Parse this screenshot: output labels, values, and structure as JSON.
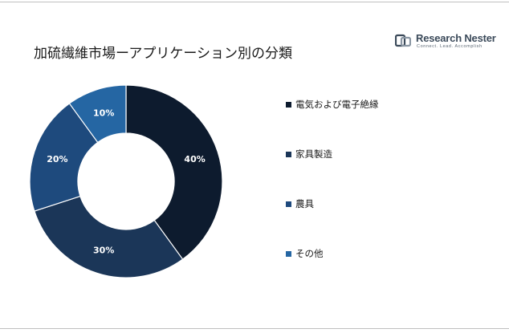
{
  "header": {
    "title": "加硫繊維市場ーアプリケーション別の分類",
    "logo_name": "Research Nester",
    "logo_tagline": "Connect. Lead. Accomplish"
  },
  "chart_data": {
    "type": "pie",
    "donut": true,
    "title": "加硫繊維市場ーアプリケーション別の分類",
    "categories": [
      "電気および電子絶縁",
      "家具製造",
      "農具",
      "その他"
    ],
    "values": [
      40,
      30,
      20,
      10
    ],
    "value_labels": [
      "40%",
      "30%",
      "20%",
      "10%"
    ],
    "colors": [
      "#0d1b2e",
      "#1b3658",
      "#1e4a7d",
      "#2566a3"
    ],
    "legend_position": "right"
  }
}
